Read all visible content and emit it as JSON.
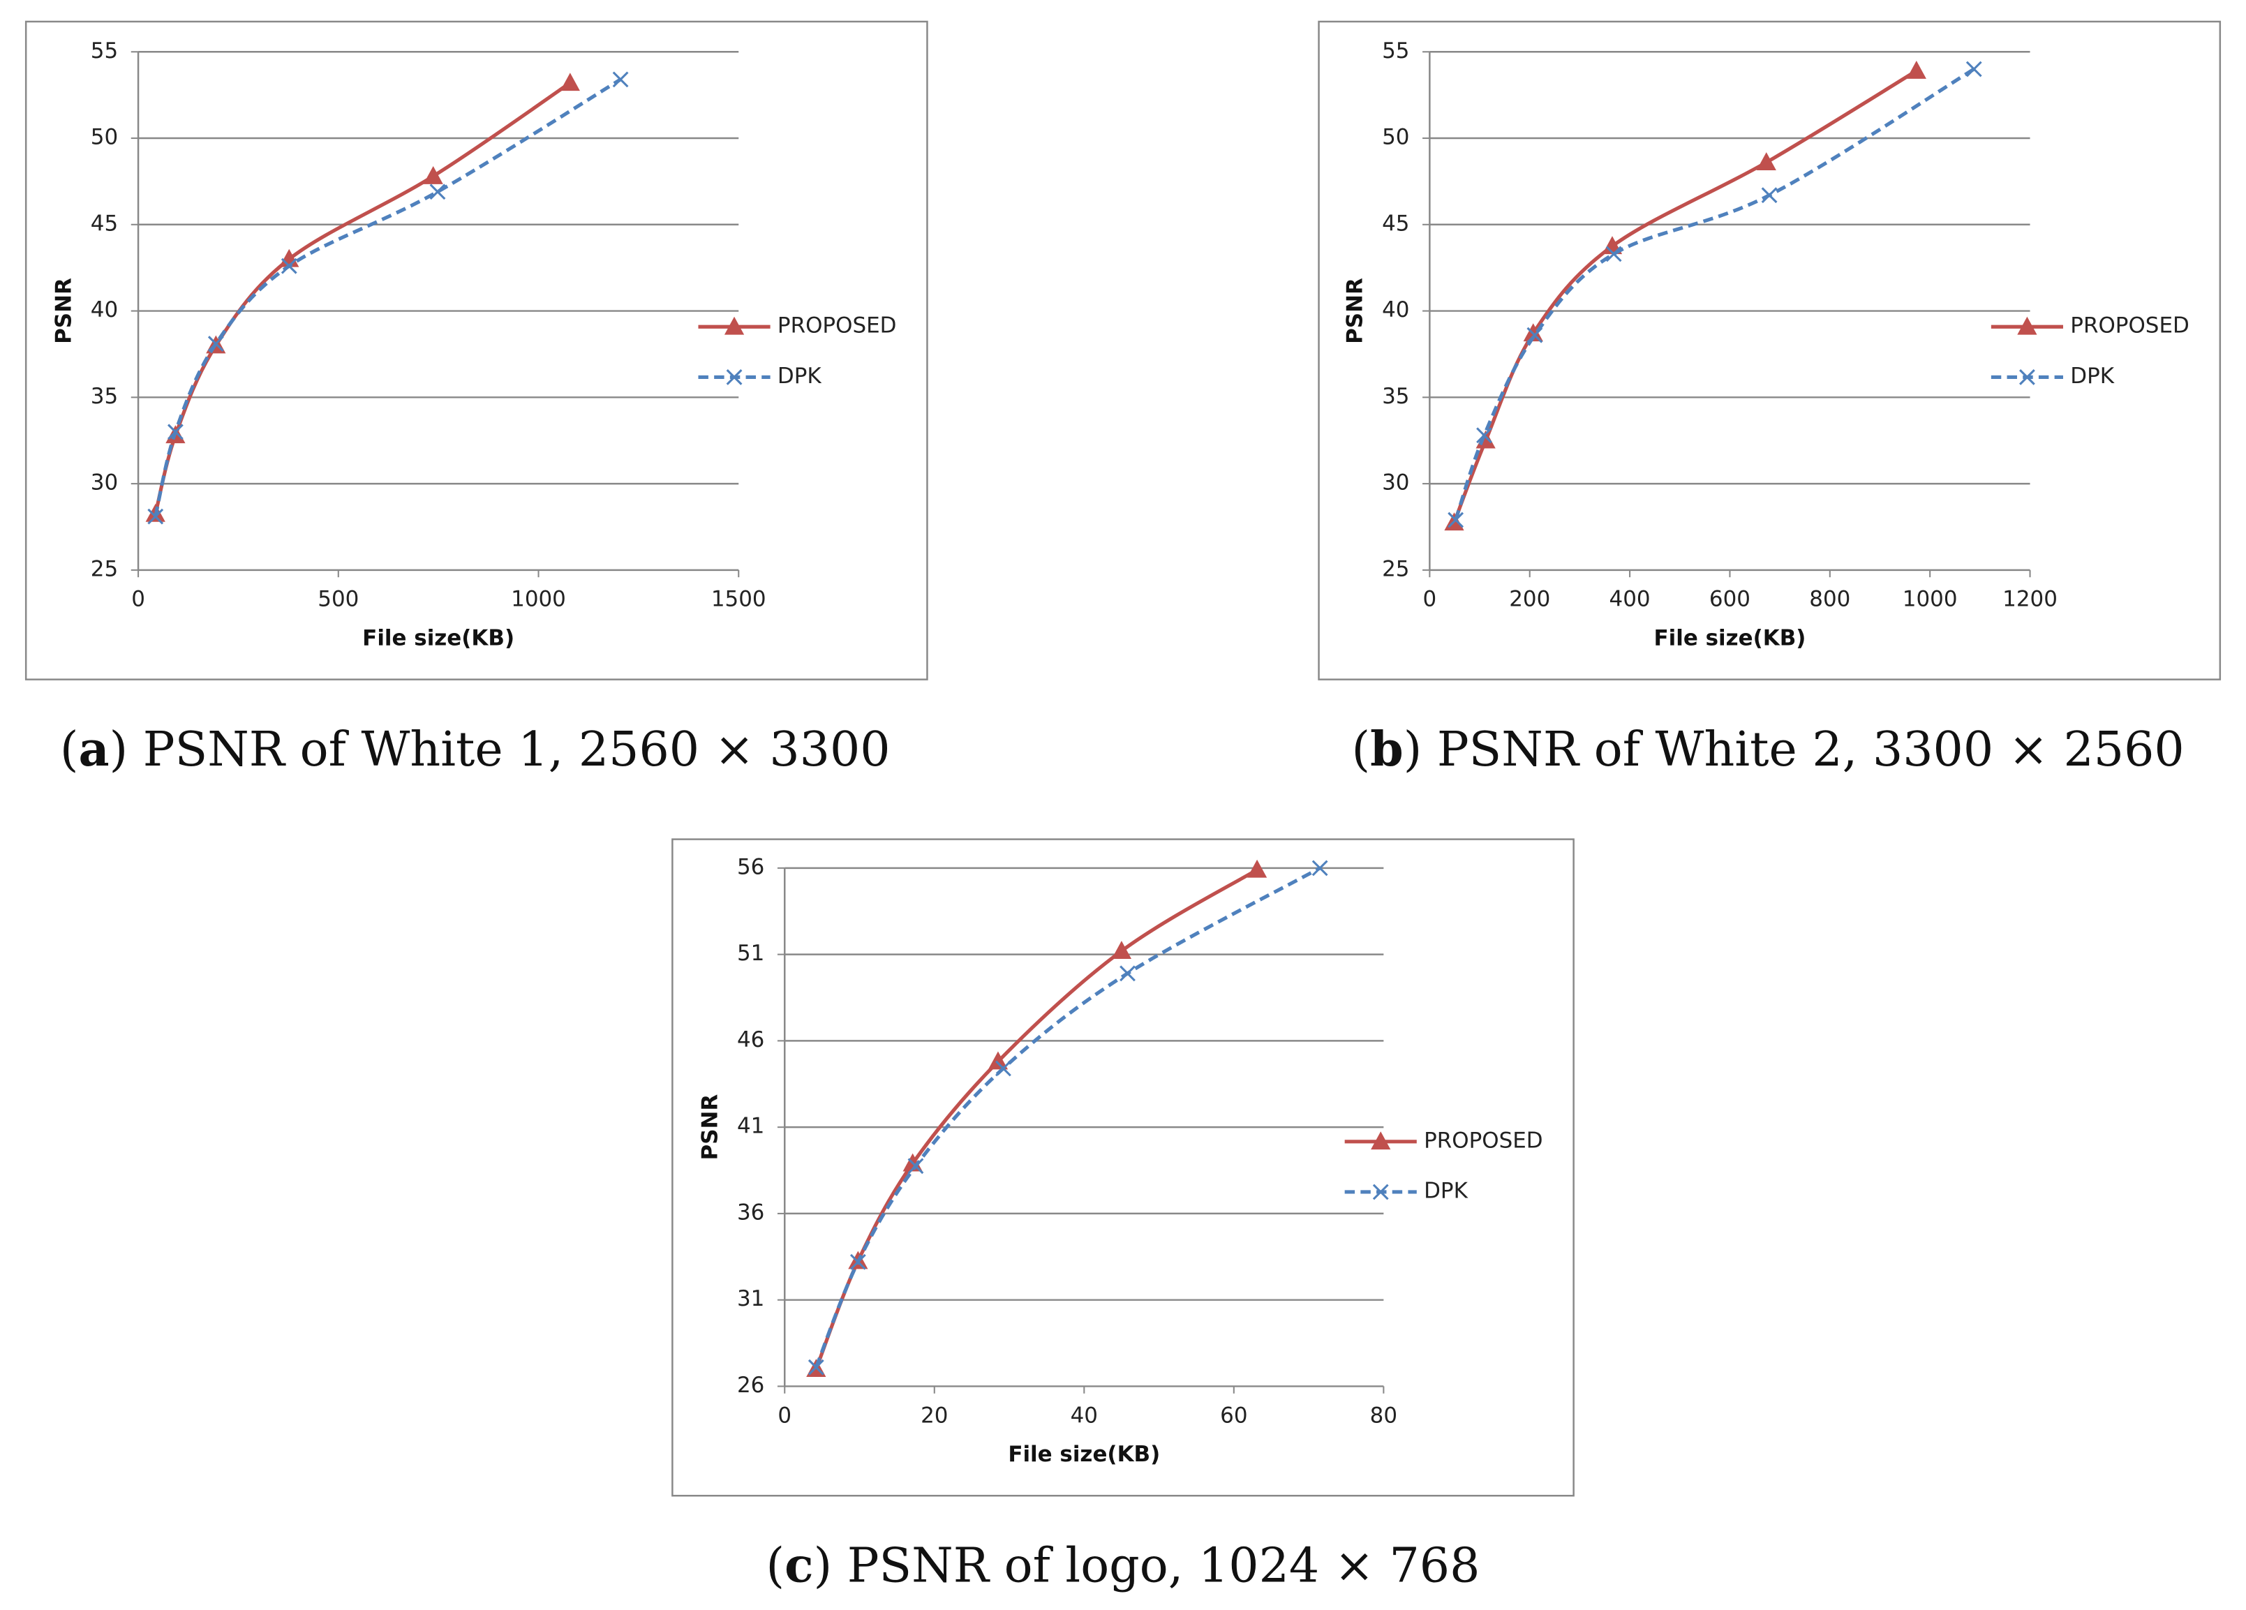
{
  "chart_data": [
    {
      "type": "line",
      "x_label": "File size(KB)",
      "y_label": "PSNR",
      "xlim": [
        0,
        1500
      ],
      "xticks": [
        0,
        500,
        1000,
        1500
      ],
      "ylim": [
        25,
        55
      ],
      "yticks": [
        25,
        30,
        35,
        40,
        45,
        50,
        55
      ],
      "grid": true,
      "series": [
        {
          "name": "PROPOSED",
          "color": "#c0504d",
          "marker": "triangle",
          "line_style": "solid",
          "x": [
            43,
            93,
            194,
            377,
            737,
            1079
          ],
          "values": [
            28.25,
            32.8,
            38,
            43,
            47.8,
            53.2
          ]
        },
        {
          "name": "DPK",
          "color": "#4f81bd",
          "marker": "x",
          "line_style": "dashed",
          "x": [
            43,
            93,
            194,
            377,
            748,
            1205
          ],
          "values": [
            28.1,
            33,
            38.1,
            42.6,
            46.9,
            53.4
          ]
        }
      ],
      "caption": [
        "(",
        "a",
        ") PSNR of White 1, 2560 × 3300"
      ]
    },
    {
      "type": "line",
      "x_label": "File size(KB)",
      "y_label": "PSNR",
      "xlim": [
        0,
        1200
      ],
      "xticks": [
        0,
        200,
        400,
        600,
        800,
        1000,
        1200
      ],
      "ylim": [
        25,
        55
      ],
      "yticks": [
        25,
        30,
        35,
        40,
        45,
        50,
        55
      ],
      "grid": true,
      "series": [
        {
          "name": "PROPOSED",
          "color": "#c0504d",
          "marker": "triangle",
          "line_style": "solid",
          "x": [
            49,
            112,
            207,
            365,
            673,
            973
          ],
          "values": [
            27.75,
            32.5,
            38.7,
            43.75,
            48.6,
            53.9
          ]
        },
        {
          "name": "DPK",
          "color": "#4f81bd",
          "marker": "x",
          "line_style": "dashed",
          "x": [
            52,
            109,
            210,
            368,
            679,
            1088
          ],
          "values": [
            27.9,
            32.8,
            38.6,
            43.3,
            46.7,
            54
          ]
        }
      ],
      "caption": [
        "(",
        "b",
        ") PSNR of White 2, 3300 × 2560"
      ]
    },
    {
      "type": "line",
      "x_label": "File size(KB)",
      "y_label": "PSNR",
      "xlim": [
        0,
        80
      ],
      "xticks": [
        0,
        20,
        40,
        60,
        80
      ],
      "ylim": [
        26,
        56
      ],
      "yticks": [
        26,
        31,
        36,
        41,
        46,
        51,
        56
      ],
      "grid": true,
      "series": [
        {
          "name": "PROPOSED",
          "color": "#c0504d",
          "marker": "triangle",
          "line_style": "solid",
          "x": [
            4.2,
            9.8,
            17.1,
            28.5,
            45,
            63.1
          ],
          "values": [
            27,
            33.25,
            38.9,
            44.8,
            51.2,
            55.9
          ]
        },
        {
          "name": "DPK",
          "color": "#4f81bd",
          "marker": "x",
          "line_style": "dashed",
          "x": [
            4.2,
            9.8,
            17.5,
            29.2,
            45.8,
            71.5
          ],
          "values": [
            27.1,
            33.2,
            38.75,
            44.4,
            49.9,
            56
          ]
        }
      ],
      "caption": [
        "(",
        "c",
        ") PSNR of logo, 1024 × 768"
      ]
    }
  ]
}
